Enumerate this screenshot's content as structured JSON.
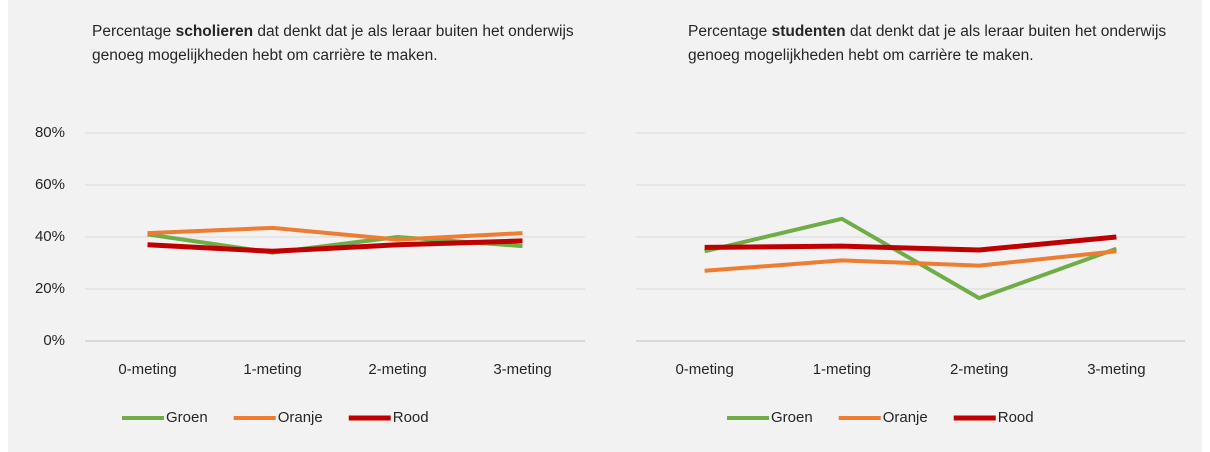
{
  "chart_data": [
    {
      "type": "line",
      "title": [
        "Percentage ",
        "scholieren",
        " dat denkt dat je als leraar buiten het onderwijs genoeg mogelijkheden hebt om carrière te maken."
      ],
      "categories": [
        "0-meting",
        "1-meting",
        "2-meting",
        "3-meting"
      ],
      "series": [
        {
          "name": "Groen",
          "color": "#70ad47",
          "values": [
            41,
            34,
            40,
            36.5
          ]
        },
        {
          "name": "Oranje",
          "color": "#ed7d31",
          "values": [
            41.5,
            43.5,
            39,
            41.5
          ]
        },
        {
          "name": "Rood",
          "color": "#c00000",
          "values": [
            37,
            34.5,
            37,
            38.5
          ]
        }
      ],
      "ylim": [
        0,
        80
      ],
      "yticks": [
        {
          "value": 0,
          "label": "0%"
        },
        {
          "value": 20,
          "label": "20%"
        },
        {
          "value": 40,
          "label": "40%"
        },
        {
          "value": 60,
          "label": "60%"
        },
        {
          "value": 80,
          "label": "80%"
        }
      ],
      "grid": true,
      "legend": "bottom"
    },
    {
      "type": "line",
      "title": [
        "Percentage ",
        "studenten",
        " dat denkt dat je als leraar buiten het onderwijs genoeg mogelijkheden hebt om carrière te maken."
      ],
      "categories": [
        "0-meting",
        "1-meting",
        "2-meting",
        "3-meting"
      ],
      "series": [
        {
          "name": "Groen",
          "color": "#70ad47",
          "values": [
            34.5,
            47,
            16.5,
            35.5
          ]
        },
        {
          "name": "Oranje",
          "color": "#ed7d31",
          "values": [
            27,
            31,
            29,
            34.5
          ]
        },
        {
          "name": "Rood",
          "color": "#c00000",
          "values": [
            36,
            36.5,
            35,
            40
          ]
        }
      ],
      "ylim": [
        0,
        80
      ],
      "yticks": [
        0,
        20,
        40,
        60,
        80
      ],
      "grid": true,
      "legend": "bottom"
    }
  ]
}
